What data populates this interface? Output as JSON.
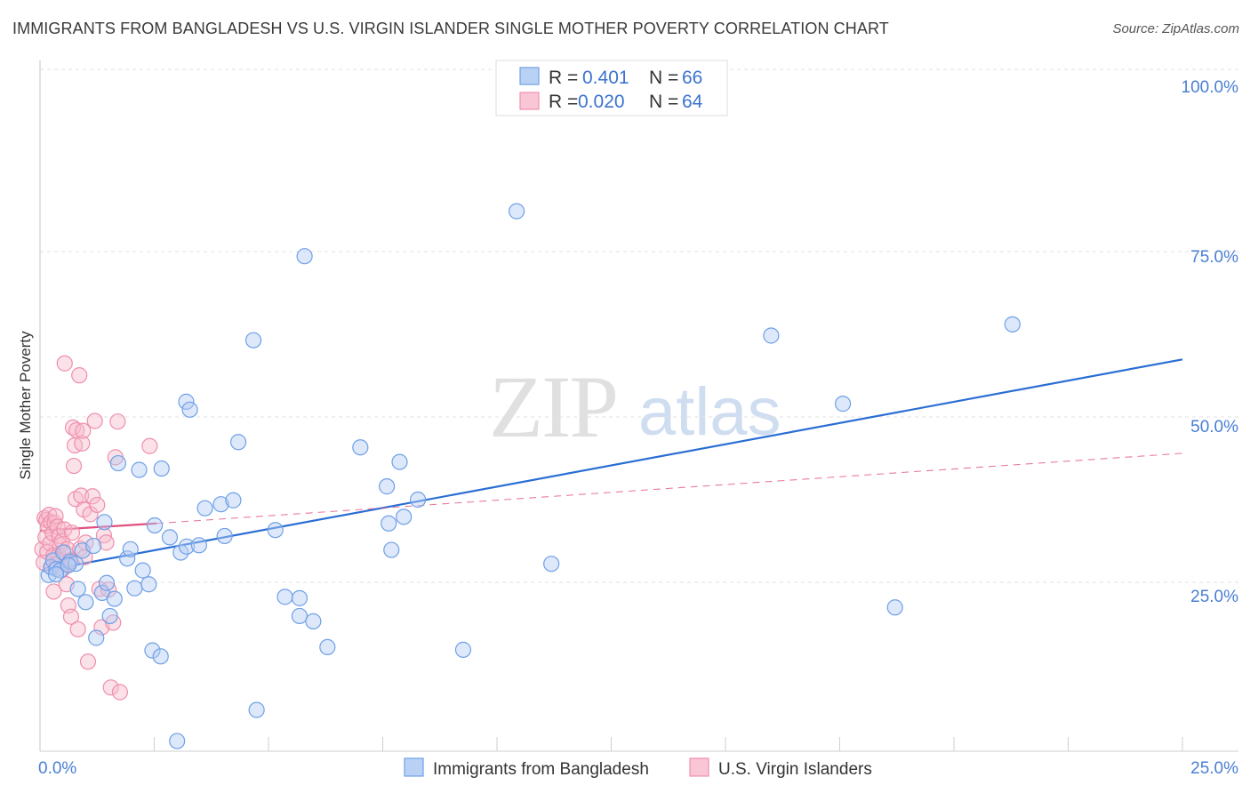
{
  "header": {
    "title": "IMMIGRANTS FROM BANGLADESH VS U.S. VIRGIN ISLANDER SINGLE MOTHER POVERTY CORRELATION CHART",
    "source": "Source: ZipAtlas.com"
  },
  "watermark": {
    "zip": "ZIP",
    "atlas": "atlas"
  },
  "legend_top": {
    "rows": [
      {
        "r_label": "R =",
        "r_value": "0.401",
        "n_label": "N =",
        "n_value": "66"
      },
      {
        "r_label": "R =",
        "r_value": "0.020",
        "n_label": "N =",
        "n_value": "64"
      }
    ]
  },
  "chart_data": {
    "type": "scatter",
    "title": "IMMIGRANTS FROM BANGLADESH VS U.S. VIRGIN ISLANDER SINGLE MOTHER POVERTY CORRELATION CHART",
    "xlabel": "",
    "ylabel": "Single Mother Poverty",
    "xlim": [
      0,
      25
    ],
    "ylim": [
      0,
      100
    ],
    "x_tick_labels": [
      "0.0%",
      "25.0%"
    ],
    "y_tick_labels": [
      "25.0%",
      "50.0%",
      "75.0%",
      "100.0%"
    ],
    "y_ticks": [
      25,
      50,
      75,
      100
    ],
    "grid": true,
    "legend_position": "bottom-center",
    "colors": {
      "blue": "#6fa0e6",
      "blue_line": "#2a6ed4",
      "pink": "#ef8fad",
      "pink_line": "#e0507e"
    },
    "series": [
      {
        "name": "Immigrants from Bangladesh",
        "R": 0.401,
        "N": 66,
        "trend": {
          "x0": 0.05,
          "y0": 26.7,
          "x1": 25.0,
          "y1": 58.7,
          "style": "solid"
        },
        "points": [
          [
            0.19,
            26.1
          ],
          [
            0.24,
            27.3
          ],
          [
            0.29,
            28.3
          ],
          [
            0.36,
            27.0
          ],
          [
            0.44,
            26.8
          ],
          [
            0.51,
            29.5
          ],
          [
            0.66,
            28.1
          ],
          [
            0.78,
            27.8
          ],
          [
            0.83,
            24.0
          ],
          [
            0.93,
            29.8
          ],
          [
            1.0,
            22.0
          ],
          [
            1.17,
            30.5
          ],
          [
            1.23,
            16.6
          ],
          [
            1.36,
            23.4
          ],
          [
            1.46,
            24.9
          ],
          [
            1.53,
            19.9
          ],
          [
            1.63,
            22.5
          ],
          [
            1.41,
            34.1
          ],
          [
            1.71,
            43.0
          ],
          [
            1.91,
            28.6
          ],
          [
            1.98,
            30.0
          ],
          [
            2.07,
            24.1
          ],
          [
            2.17,
            42.0
          ],
          [
            2.25,
            26.8
          ],
          [
            2.38,
            24.7
          ],
          [
            2.46,
            14.7
          ],
          [
            2.51,
            33.6
          ],
          [
            2.64,
            13.8
          ],
          [
            2.66,
            42.2
          ],
          [
            2.84,
            31.8
          ],
          [
            3.0,
            1.0
          ],
          [
            3.08,
            29.5
          ],
          [
            3.21,
            30.4
          ],
          [
            3.2,
            52.3
          ],
          [
            3.28,
            51.1
          ],
          [
            3.48,
            30.6
          ],
          [
            3.61,
            36.2
          ],
          [
            3.96,
            36.8
          ],
          [
            4.04,
            32.0
          ],
          [
            4.23,
            37.4
          ],
          [
            4.34,
            46.2
          ],
          [
            4.67,
            61.6
          ],
          [
            4.74,
            5.7
          ],
          [
            5.15,
            32.9
          ],
          [
            5.36,
            22.8
          ],
          [
            5.68,
            22.6
          ],
          [
            5.68,
            19.9
          ],
          [
            5.79,
            74.3
          ],
          [
            5.98,
            19.1
          ],
          [
            6.29,
            15.2
          ],
          [
            7.01,
            45.4
          ],
          [
            7.59,
            39.5
          ],
          [
            7.63,
            33.9
          ],
          [
            7.69,
            29.9
          ],
          [
            7.87,
            43.2
          ],
          [
            7.96,
            34.9
          ],
          [
            8.27,
            37.5
          ],
          [
            9.26,
            14.8
          ],
          [
            10.43,
            81.1
          ],
          [
            11.19,
            27.8
          ],
          [
            16.0,
            62.3
          ],
          [
            17.57,
            52.0
          ],
          [
            18.71,
            21.2
          ],
          [
            21.28,
            64.0
          ],
          [
            0.35,
            26.2
          ],
          [
            0.62,
            27.6
          ]
        ]
      },
      {
        "name": "U.S. Virgin Islanders",
        "R": 0.02,
        "N": 64,
        "trend_solid": {
          "x0": 0.0,
          "y0": 32.8,
          "x1": 2.55,
          "y1": 33.9
        },
        "trend_dashed": {
          "x0": 2.55,
          "y0": 33.9,
          "x1": 25.0,
          "y1": 44.5
        },
        "points": [
          [
            0.05,
            30.0
          ],
          [
            0.08,
            28.0
          ],
          [
            0.1,
            34.7
          ],
          [
            0.12,
            31.8
          ],
          [
            0.14,
            34.4
          ],
          [
            0.16,
            29.6
          ],
          [
            0.18,
            33.5
          ],
          [
            0.2,
            35.2
          ],
          [
            0.22,
            30.9
          ],
          [
            0.24,
            34.1
          ],
          [
            0.26,
            27.3
          ],
          [
            0.28,
            32.4
          ],
          [
            0.3,
            29.1
          ],
          [
            0.32,
            34.0
          ],
          [
            0.34,
            35.0
          ],
          [
            0.36,
            27.6
          ],
          [
            0.38,
            33.4
          ],
          [
            0.4,
            29.0
          ],
          [
            0.42,
            32.0
          ],
          [
            0.44,
            30.6
          ],
          [
            0.46,
            28.3
          ],
          [
            0.48,
            31.2
          ],
          [
            0.5,
            27.0
          ],
          [
            0.53,
            33.0
          ],
          [
            0.55,
            29.5
          ],
          [
            0.58,
            24.7
          ],
          [
            0.6,
            30.0
          ],
          [
            0.62,
            21.5
          ],
          [
            0.64,
            27.8
          ],
          [
            0.66,
            28.3
          ],
          [
            0.68,
            19.8
          ],
          [
            0.7,
            32.5
          ],
          [
            0.72,
            48.4
          ],
          [
            0.74,
            42.6
          ],
          [
            0.76,
            45.7
          ],
          [
            0.78,
            37.6
          ],
          [
            0.8,
            48.0
          ],
          [
            0.83,
            17.9
          ],
          [
            0.86,
            56.3
          ],
          [
            0.88,
            30.1
          ],
          [
            0.9,
            38.1
          ],
          [
            0.92,
            46.0
          ],
          [
            0.94,
            47.9
          ],
          [
            0.96,
            36.0
          ],
          [
            0.98,
            28.8
          ],
          [
            1.0,
            31.0
          ],
          [
            1.05,
            13.0
          ],
          [
            1.1,
            35.3
          ],
          [
            1.15,
            38.0
          ],
          [
            1.2,
            49.4
          ],
          [
            1.25,
            36.7
          ],
          [
            1.3,
            24.0
          ],
          [
            1.35,
            18.2
          ],
          [
            1.4,
            32.1
          ],
          [
            1.45,
            31.0
          ],
          [
            1.5,
            23.9
          ],
          [
            1.55,
            9.1
          ],
          [
            1.6,
            18.9
          ],
          [
            1.65,
            43.9
          ],
          [
            1.7,
            49.3
          ],
          [
            1.75,
            8.4
          ],
          [
            2.4,
            45.6
          ],
          [
            0.54,
            58.1
          ],
          [
            0.3,
            23.6
          ]
        ]
      }
    ]
  }
}
